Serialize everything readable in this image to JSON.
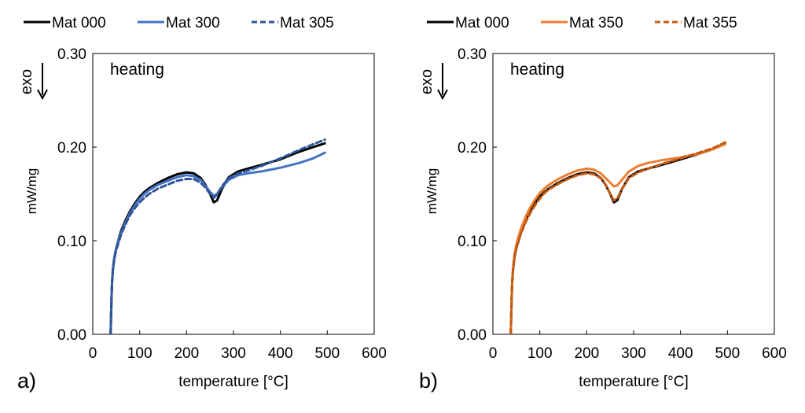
{
  "chart_data": [
    {
      "type": "line",
      "panel_label": "a)",
      "annotation": "heating",
      "exo_label": "exo",
      "xlabel": "temperature [°C]",
      "ylabel": "mW/mg",
      "xlim": [
        0,
        600
      ],
      "ylim": [
        0,
        0.3
      ],
      "xticks": [
        0,
        100,
        200,
        300,
        400,
        500,
        600
      ],
      "yticks": [
        0.0,
        0.1,
        0.2,
        0.3
      ],
      "ytick_labels": [
        "0.00",
        "0.10",
        "0.20",
        "0.30"
      ],
      "grid": false,
      "legend_position": "top",
      "series": [
        {
          "name": "Mat 000",
          "color": "#000000",
          "dash": "solid",
          "x": [
            38,
            39,
            40,
            41,
            43,
            46,
            50,
            55,
            60,
            70,
            80,
            90,
            100,
            110,
            120,
            140,
            160,
            180,
            200,
            215,
            230,
            240,
            250,
            258,
            265,
            275,
            290,
            310,
            330,
            360,
            400,
            440,
            470,
            495
          ],
          "y": [
            0.0,
            0.02,
            0.04,
            0.055,
            0.07,
            0.082,
            0.092,
            0.101,
            0.11,
            0.122,
            0.132,
            0.14,
            0.147,
            0.152,
            0.156,
            0.162,
            0.167,
            0.171,
            0.173,
            0.172,
            0.167,
            0.16,
            0.15,
            0.141,
            0.143,
            0.155,
            0.168,
            0.174,
            0.177,
            0.181,
            0.187,
            0.195,
            0.2,
            0.204
          ]
        },
        {
          "name": "Mat 300",
          "color": "#4472C4",
          "dash": "solid",
          "x": [
            38,
            39,
            40,
            41,
            43,
            46,
            50,
            55,
            60,
            70,
            80,
            90,
            100,
            110,
            120,
            140,
            160,
            180,
            200,
            215,
            230,
            240,
            250,
            258,
            265,
            275,
            290,
            310,
            330,
            360,
            400,
            440,
            470,
            495
          ],
          "y": [
            0.0,
            0.02,
            0.04,
            0.055,
            0.07,
            0.082,
            0.092,
            0.1,
            0.108,
            0.12,
            0.13,
            0.138,
            0.145,
            0.15,
            0.154,
            0.16,
            0.164,
            0.168,
            0.17,
            0.169,
            0.165,
            0.159,
            0.152,
            0.148,
            0.15,
            0.157,
            0.165,
            0.17,
            0.172,
            0.174,
            0.178,
            0.183,
            0.188,
            0.194
          ]
        },
        {
          "name": "Mat 305",
          "color": "#2F5597",
          "dash": "dashed",
          "x": [
            38,
            39,
            40,
            41,
            43,
            46,
            50,
            55,
            60,
            70,
            80,
            90,
            100,
            110,
            120,
            140,
            160,
            180,
            200,
            215,
            230,
            240,
            250,
            258,
            265,
            275,
            290,
            310,
            330,
            360,
            400,
            440,
            470,
            495
          ],
          "y": [
            0.0,
            0.02,
            0.04,
            0.055,
            0.069,
            0.08,
            0.09,
            0.098,
            0.106,
            0.118,
            0.128,
            0.135,
            0.141,
            0.146,
            0.15,
            0.156,
            0.16,
            0.164,
            0.166,
            0.166,
            0.162,
            0.157,
            0.15,
            0.146,
            0.149,
            0.158,
            0.167,
            0.172,
            0.175,
            0.18,
            0.188,
            0.197,
            0.203,
            0.208
          ]
        }
      ]
    },
    {
      "type": "line",
      "panel_label": "b)",
      "annotation": "heating",
      "exo_label": "exo",
      "xlabel": "temperature [°C]",
      "ylabel": "mW/mg",
      "xlim": [
        0,
        600
      ],
      "ylim": [
        0,
        0.3
      ],
      "xticks": [
        0,
        100,
        200,
        300,
        400,
        500,
        600
      ],
      "yticks": [
        0.0,
        0.1,
        0.2,
        0.3
      ],
      "ytick_labels": [
        "0.00",
        "0.10",
        "0.20",
        "0.30"
      ],
      "grid": false,
      "legend_position": "top",
      "series": [
        {
          "name": "Mat 000",
          "color": "#000000",
          "dash": "solid",
          "x": [
            38,
            39,
            40,
            41,
            43,
            46,
            50,
            55,
            60,
            70,
            80,
            90,
            100,
            110,
            120,
            140,
            160,
            180,
            200,
            215,
            230,
            240,
            250,
            258,
            265,
            275,
            290,
            310,
            330,
            360,
            400,
            440,
            470,
            495
          ],
          "y": [
            0.0,
            0.02,
            0.04,
            0.055,
            0.07,
            0.082,
            0.092,
            0.101,
            0.11,
            0.122,
            0.132,
            0.14,
            0.147,
            0.152,
            0.156,
            0.162,
            0.167,
            0.171,
            0.173,
            0.172,
            0.167,
            0.16,
            0.15,
            0.141,
            0.143,
            0.155,
            0.168,
            0.174,
            0.177,
            0.181,
            0.187,
            0.193,
            0.198,
            0.204
          ]
        },
        {
          "name": "Mat 350",
          "color": "#ED7D31",
          "dash": "solid",
          "x": [
            38,
            39,
            40,
            41,
            43,
            46,
            50,
            55,
            60,
            70,
            80,
            90,
            100,
            110,
            120,
            140,
            160,
            180,
            200,
            215,
            230,
            240,
            250,
            258,
            265,
            275,
            290,
            310,
            330,
            360,
            400,
            440,
            470,
            495
          ],
          "y": [
            0.0,
            0.02,
            0.041,
            0.057,
            0.072,
            0.085,
            0.096,
            0.105,
            0.113,
            0.126,
            0.136,
            0.144,
            0.151,
            0.156,
            0.16,
            0.166,
            0.171,
            0.175,
            0.177,
            0.176,
            0.172,
            0.167,
            0.162,
            0.158,
            0.159,
            0.165,
            0.174,
            0.18,
            0.183,
            0.186,
            0.189,
            0.193,
            0.198,
            0.203
          ]
        },
        {
          "name": "Mat 355",
          "color": "#C55A11",
          "dash": "dashed",
          "x": [
            38,
            39,
            40,
            41,
            43,
            46,
            50,
            55,
            60,
            70,
            80,
            90,
            100,
            110,
            120,
            140,
            160,
            180,
            200,
            215,
            230,
            240,
            250,
            258,
            265,
            275,
            290,
            310,
            330,
            360,
            400,
            440,
            470,
            495
          ],
          "y": [
            0.0,
            0.02,
            0.04,
            0.055,
            0.07,
            0.082,
            0.092,
            0.1,
            0.108,
            0.12,
            0.13,
            0.138,
            0.145,
            0.151,
            0.155,
            0.161,
            0.166,
            0.17,
            0.172,
            0.171,
            0.167,
            0.16,
            0.15,
            0.143,
            0.145,
            0.155,
            0.167,
            0.173,
            0.177,
            0.182,
            0.188,
            0.194,
            0.199,
            0.205
          ]
        }
      ]
    }
  ]
}
